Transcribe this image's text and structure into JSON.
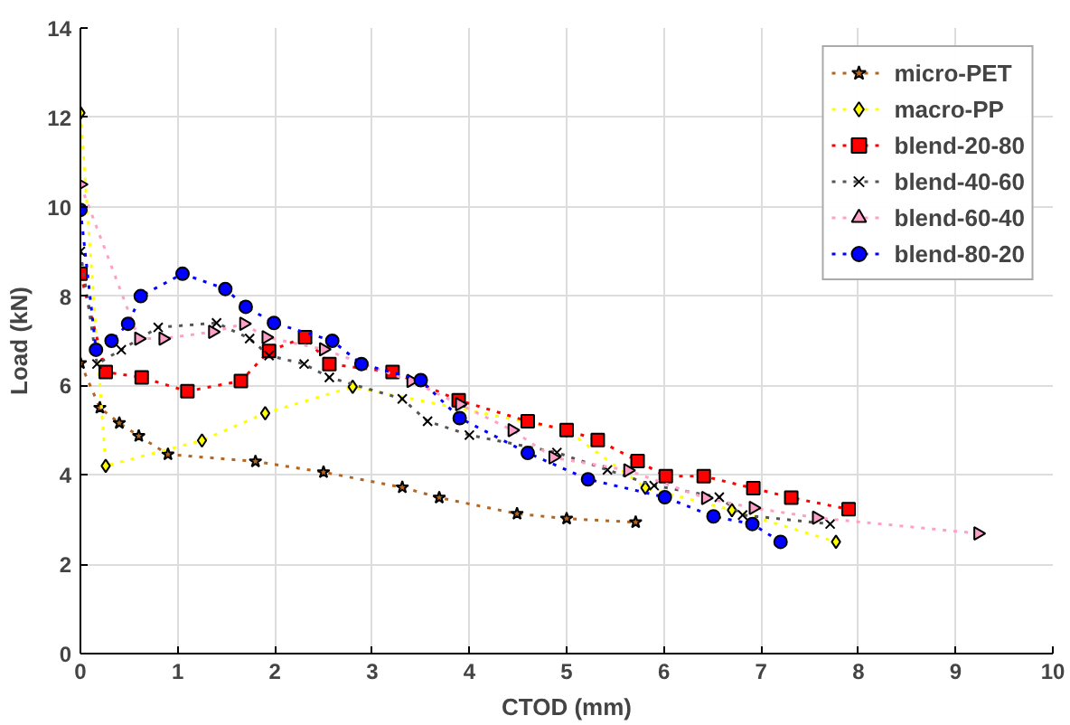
{
  "chart_data": {
    "type": "line",
    "xlabel": "CTOD (mm)",
    "ylabel": "Load (kN)",
    "xlim": [
      0,
      10
    ],
    "ylim": [
      0,
      14
    ],
    "xticks": [
      0,
      1,
      2,
      3,
      4,
      5,
      6,
      7,
      8,
      9,
      10
    ],
    "yticks": [
      0,
      2,
      4,
      6,
      8,
      10,
      12,
      14
    ],
    "grid": true,
    "legend": "top right",
    "line_style": "dotted",
    "series": [
      {
        "name": "micro-PET",
        "color": "#b5651d",
        "marker": "star",
        "x": [
          0,
          0.2,
          0.4,
          0.6,
          0.9,
          1.8,
          2.5,
          3.31,
          3.69,
          4.49,
          5.0,
          5.71
        ],
        "values": [
          6.5,
          5.5,
          5.16,
          4.87,
          4.46,
          4.3,
          4.06,
          3.72,
          3.49,
          3.13,
          3.02,
          2.94
        ]
      },
      {
        "name": "macro-PP",
        "color": "#ffff00",
        "marker": "diamond",
        "x": [
          0,
          0.26,
          1.25,
          1.9,
          2.8,
          5.0,
          5.81,
          6.7,
          7.77
        ],
        "values": [
          12.1,
          4.2,
          4.77,
          5.38,
          5.97,
          5.0,
          3.71,
          3.21,
          2.5
        ]
      },
      {
        "name": "blend-20-80",
        "color": "#ff0000",
        "marker": "square",
        "x": [
          0,
          0.26,
          0.63,
          1.1,
          1.65,
          1.94,
          2.31,
          2.56,
          3.21,
          3.89,
          4.6,
          5.0,
          5.32,
          5.73,
          6.02,
          6.41,
          6.92,
          7.31,
          7.9
        ],
        "values": [
          8.5,
          6.3,
          6.18,
          5.87,
          6.1,
          6.77,
          7.08,
          6.48,
          6.3,
          5.67,
          5.2,
          5.0,
          4.78,
          4.31,
          3.97,
          3.97,
          3.7,
          3.49,
          3.23
        ]
      },
      {
        "name": "blend-40-60",
        "color": "#555555",
        "marker": "cross",
        "x": [
          0,
          0.17,
          0.42,
          0.8,
          1.4,
          1.74,
          1.94,
          2.3,
          2.56,
          3.31,
          3.57,
          4.0,
          4.9,
          5.42,
          5.9,
          6.57,
          6.81,
          7.71
        ],
        "values": [
          9.0,
          6.48,
          6.8,
          7.3,
          7.4,
          7.05,
          6.67,
          6.48,
          6.18,
          5.7,
          5.2,
          4.89,
          4.5,
          4.11,
          3.76,
          3.5,
          3.1,
          2.9
        ]
      },
      {
        "name": "blend-60-40",
        "color": "#ffa0c8",
        "marker": "triangle",
        "x": [
          0,
          0.6,
          0.85,
          1.36,
          1.68,
          1.91,
          2.5,
          3.4,
          3.9,
          4.44,
          4.86,
          5.63,
          6.43,
          6.92,
          7.57,
          9.23
        ],
        "values": [
          10.5,
          7.05,
          7.05,
          7.2,
          7.38,
          7.08,
          6.81,
          6.1,
          5.58,
          5.0,
          4.39,
          4.1,
          3.48,
          3.26,
          3.04,
          2.69
        ]
      },
      {
        "name": "blend-80-20",
        "color": "#0000ff",
        "marker": "circle",
        "x": [
          0,
          0.16,
          0.32,
          0.49,
          0.62,
          1.05,
          1.49,
          1.7,
          1.99,
          2.59,
          2.89,
          3.5,
          3.9,
          4.6,
          5.22,
          6.01,
          6.51,
          6.91,
          7.2
        ],
        "values": [
          9.93,
          6.8,
          7.0,
          7.38,
          8.0,
          8.5,
          8.16,
          7.76,
          7.4,
          7.0,
          6.48,
          6.12,
          5.27,
          4.49,
          3.9,
          3.5,
          3.07,
          2.9,
          2.5
        ]
      }
    ]
  }
}
